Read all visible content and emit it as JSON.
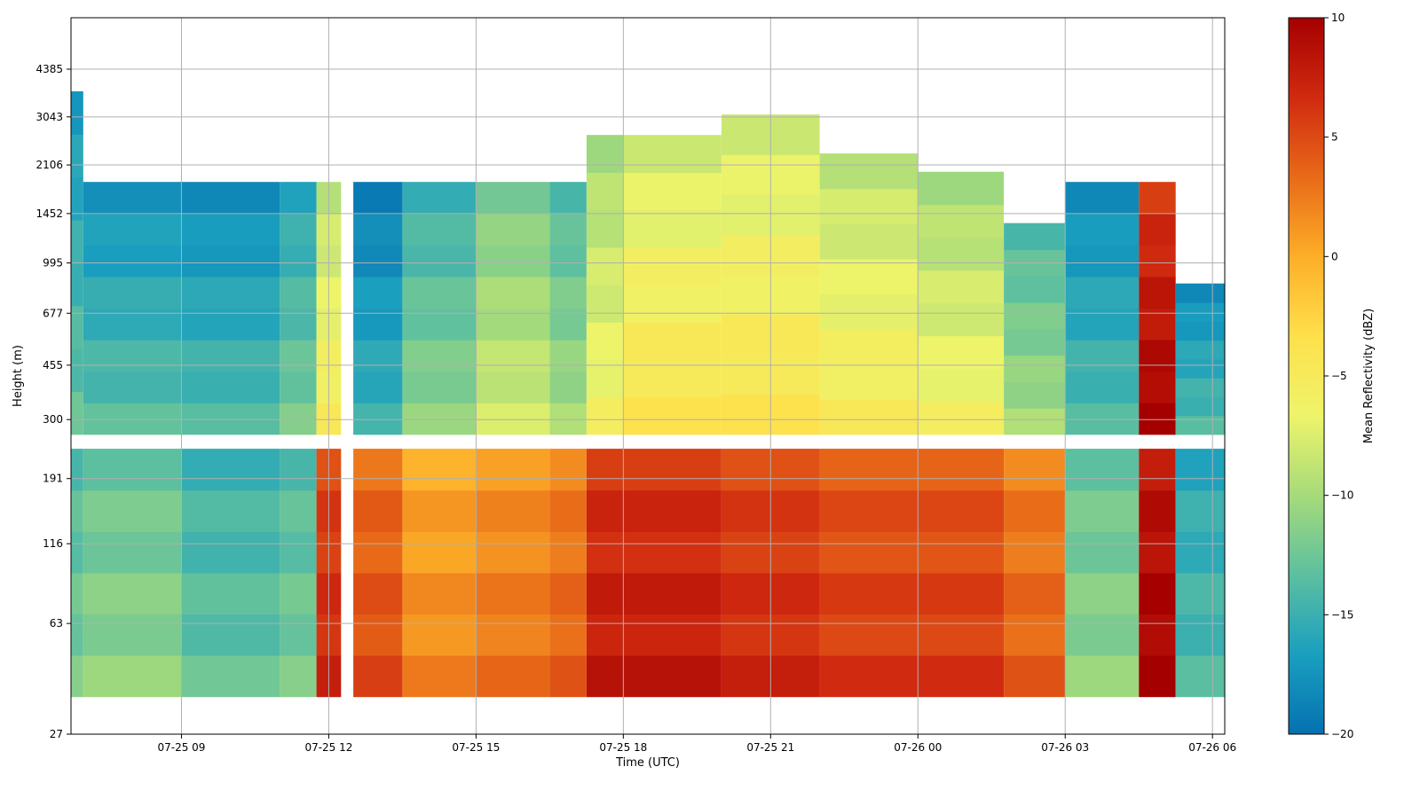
{
  "chart_data": {
    "type": "heatmap",
    "title": "",
    "xlabel": "Time (UTC)",
    "ylabel": "Height (m)",
    "x_scale": "time",
    "y_scale": "log",
    "xlim": [
      "2025-07-25T06:45",
      "2025-07-26T06:15"
    ],
    "ylim": [
      27,
      6500
    ],
    "x_ticks": [
      {
        "t": "2025-07-25T09:00",
        "label": "07-25 09"
      },
      {
        "t": "2025-07-25T12:00",
        "label": "07-25 12"
      },
      {
        "t": "2025-07-25T15:00",
        "label": "07-25 15"
      },
      {
        "t": "2025-07-25T18:00",
        "label": "07-25 18"
      },
      {
        "t": "2025-07-25T21:00",
        "label": "07-25 21"
      },
      {
        "t": "2025-07-26T00:00",
        "label": "07-26 00"
      },
      {
        "t": "2025-07-26T03:00",
        "label": "07-26 03"
      },
      {
        "t": "2025-07-26T06:00",
        "label": "07-26 06"
      }
    ],
    "y_ticks": [
      27,
      63,
      116,
      191,
      300,
      455,
      677,
      995,
      1452,
      2106,
      3043,
      4385
    ],
    "grid": true,
    "colorbar": {
      "label": "Mean Reflectivity (dBZ)",
      "range": [
        -20,
        10
      ],
      "ticks": [
        -20,
        -15,
        -10,
        -5,
        0,
        5,
        10
      ],
      "colormap": [
        "#0571b0",
        "#1a9fbf",
        "#5cbfa0",
        "#a6db7a",
        "#eef46a",
        "#fee04b",
        "#fdae28",
        "#e86a18",
        "#d02a10",
        "#a50000"
      ]
    },
    "gaps": {
      "height_gap_m": [
        240,
        268
      ],
      "time_gaps": [
        [
          "2025-07-25T12:15",
          "2025-07-25T12:30"
        ]
      ]
    },
    "time_blocks": [
      {
        "start": "2025-07-25T06:45",
        "end": "2025-07-25T07:00",
        "upper_top_m": 3700,
        "upper_dbz": -13,
        "lower_dbz": -12
      },
      {
        "start": "2025-07-25T07:00",
        "end": "2025-07-25T09:00",
        "upper_top_m": 1850,
        "upper_dbz": -13.5,
        "lower_dbz": -11
      },
      {
        "start": "2025-07-25T09:00",
        "end": "2025-07-25T11:00",
        "upper_top_m": 1850,
        "upper_dbz": -14,
        "lower_dbz": -13
      },
      {
        "start": "2025-07-25T11:00",
        "end": "2025-07-25T11:45",
        "upper_top_m": 1850,
        "upper_dbz": -12,
        "lower_dbz": -12
      },
      {
        "start": "2025-07-25T11:45",
        "end": "2025-07-25T12:15",
        "upper_top_m": 1850,
        "upper_dbz": -5,
        "lower_dbz": 7
      },
      {
        "start": "2025-07-25T12:30",
        "end": "2025-07-25T13:30",
        "upper_top_m": 1850,
        "upper_dbz": -15,
        "lower_dbz": 5
      },
      {
        "start": "2025-07-25T13:30",
        "end": "2025-07-25T15:00",
        "upper_top_m": 1850,
        "upper_dbz": -11,
        "lower_dbz": 2
      },
      {
        "start": "2025-07-25T15:00",
        "end": "2025-07-25T16:30",
        "upper_top_m": 1850,
        "upper_dbz": -8,
        "lower_dbz": 3
      },
      {
        "start": "2025-07-25T16:30",
        "end": "2025-07-25T17:15",
        "upper_top_m": 1850,
        "upper_dbz": -10,
        "lower_dbz": 4
      },
      {
        "start": "2025-07-25T17:15",
        "end": "2025-07-25T18:00",
        "upper_top_m": 2650,
        "upper_dbz": -6,
        "lower_dbz": 8
      },
      {
        "start": "2025-07-25T18:00",
        "end": "2025-07-25T20:00",
        "upper_top_m": 2650,
        "upper_dbz": -4,
        "lower_dbz": 8
      },
      {
        "start": "2025-07-25T20:00",
        "end": "2025-07-25T22:00",
        "upper_top_m": 3100,
        "upper_dbz": -4,
        "lower_dbz": 7
      },
      {
        "start": "2025-07-25T22:00",
        "end": "2025-07-26T00:00",
        "upper_top_m": 2300,
        "upper_dbz": -5,
        "lower_dbz": 6
      },
      {
        "start": "2025-07-26T00:00",
        "end": "2025-07-26T01:45",
        "upper_top_m": 2000,
        "upper_dbz": -6,
        "lower_dbz": 6
      },
      {
        "start": "2025-07-26T01:45",
        "end": "2025-07-26T03:00",
        "upper_top_m": 1350,
        "upper_dbz": -10,
        "lower_dbz": 4
      },
      {
        "start": "2025-07-26T03:00",
        "end": "2025-07-26T04:30",
        "upper_top_m": 1850,
        "upper_dbz": -14,
        "lower_dbz": -11
      },
      {
        "start": "2025-07-26T04:30",
        "end": "2025-07-26T05:15",
        "upper_top_m": 1850,
        "upper_dbz": 10,
        "lower_dbz": 10
      },
      {
        "start": "2025-07-26T05:15",
        "end": "2025-07-26T06:15",
        "upper_top_m": 850,
        "upper_dbz": -14,
        "lower_dbz": -14
      }
    ]
  }
}
